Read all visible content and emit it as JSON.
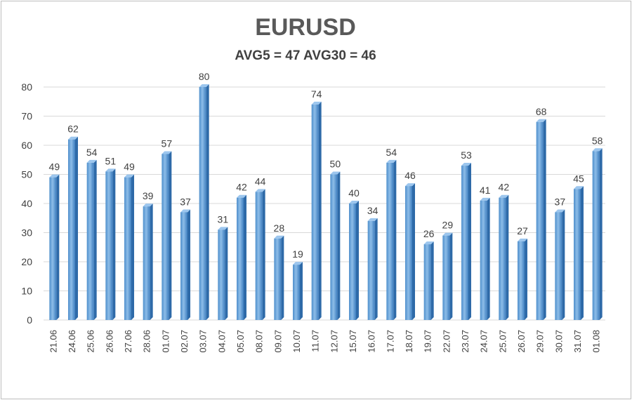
{
  "chart_data": {
    "type": "bar",
    "title": "EURUSD",
    "subtitle": "AVG5 = 47 AVG30 = 46",
    "categories": [
      "21.06",
      "24.06",
      "25.06",
      "26.06",
      "27.06",
      "28.06",
      "01.07",
      "02.07",
      "03.07",
      "04.07",
      "05.07",
      "08.07",
      "09.07",
      "10.07",
      "11.07",
      "12.07",
      "15.07",
      "16.07",
      "17.07",
      "18.07",
      "19.07",
      "22.07",
      "23.07",
      "24.07",
      "25.07",
      "26.07",
      "29.07",
      "30.07",
      "31.07",
      "01.08"
    ],
    "values": [
      49,
      62,
      54,
      51,
      49,
      39,
      57,
      37,
      80,
      31,
      42,
      44,
      28,
      19,
      74,
      50,
      40,
      34,
      54,
      46,
      26,
      29,
      53,
      41,
      42,
      27,
      68,
      37,
      45,
      58
    ],
    "ylim": [
      0,
      80
    ],
    "yticks": [
      0,
      10,
      20,
      30,
      40,
      50,
      60,
      70,
      80
    ],
    "grid": true,
    "legend": "none",
    "data_labels": true,
    "bar_color": "#5b9bd5"
  }
}
